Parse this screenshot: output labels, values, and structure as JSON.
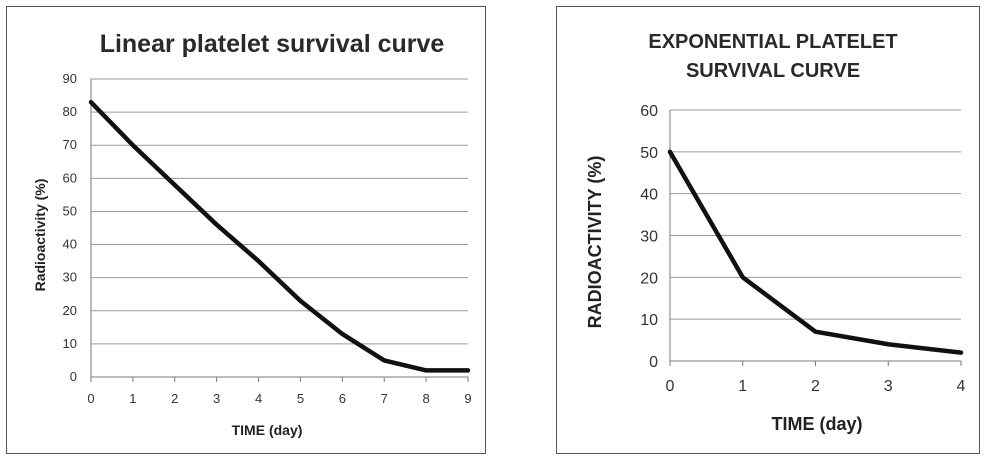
{
  "chart_data": [
    {
      "type": "line",
      "title": "Linear platelet survival curve",
      "xlabel": "TIME (day)",
      "ylabel": "Radioactivity (%)",
      "xlim": [
        0,
        9
      ],
      "ylim": [
        0,
        90
      ],
      "xticks": [
        0,
        1,
        2,
        3,
        4,
        5,
        6,
        7,
        8,
        9
      ],
      "yticks": [
        0,
        10,
        20,
        30,
        40,
        50,
        60,
        70,
        80,
        90
      ],
      "grid": true,
      "series": [
        {
          "x": [
            0,
            1,
            2,
            3,
            4,
            5,
            6,
            7,
            8,
            9
          ],
          "y": [
            83,
            70,
            58,
            46,
            35,
            23,
            13,
            5,
            2,
            2
          ]
        }
      ]
    },
    {
      "type": "line",
      "title": "EXPONENTIAL PLATELET SURVIVAL CURVE",
      "title_lines": [
        "EXPONENTIAL PLATELET",
        "SURVIVAL CURVE"
      ],
      "xlabel": "TIME (day)",
      "ylabel": "RADIOACTIVITY (%)",
      "xlim": [
        0,
        4
      ],
      "ylim": [
        0,
        60
      ],
      "xticks": [
        0,
        1,
        2,
        3,
        4
      ],
      "yticks": [
        0,
        10,
        20,
        30,
        40,
        50,
        60
      ],
      "grid": true,
      "series": [
        {
          "x": [
            0,
            1,
            2,
            3,
            4
          ],
          "y": [
            50,
            20,
            7,
            4,
            2
          ]
        }
      ]
    }
  ]
}
